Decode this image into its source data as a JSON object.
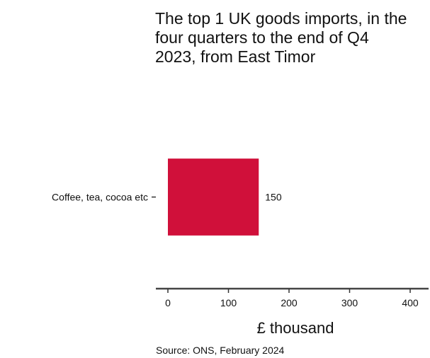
{
  "chart_data": {
    "type": "bar",
    "orientation": "horizontal",
    "title": "The top 1 UK goods imports, in the four quarters to the end of Q4 2023, from East Timor",
    "categories": [
      "Coffee, tea, cocoa etc"
    ],
    "values": [
      150
    ],
    "data_labels": [
      "150"
    ],
    "xlabel": "£ thousand",
    "ylabel": "",
    "xlim": [
      0,
      400
    ],
    "xticks": [
      0,
      100,
      200,
      300,
      400
    ],
    "xtick_labels": [
      "0",
      "100",
      "200",
      "300",
      "400"
    ],
    "grid": false,
    "legend": "none",
    "bar_color": "#d0103a",
    "source": "Source: ONS, February 2024"
  }
}
